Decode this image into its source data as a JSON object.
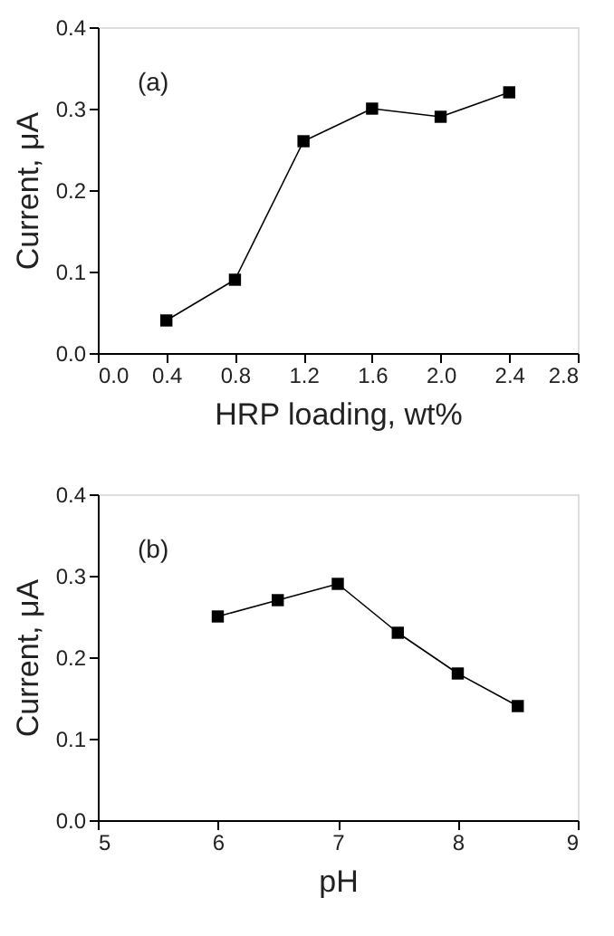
{
  "chart_data": [
    {
      "type": "line",
      "xlabel": "HRP loading, wt%",
      "ylabel": "Current, μA",
      "annotations": [
        "(a)"
      ],
      "marker": "square",
      "line_style": "solid",
      "grid": false,
      "x": [
        0.4,
        0.8,
        1.2,
        1.6,
        2.0,
        2.4
      ],
      "series": [
        {
          "color": "#000000",
          "values": [
            0.04,
            0.09,
            0.26,
            0.3,
            0.29,
            0.32
          ]
        }
      ],
      "xlim": [
        0,
        2.8
      ],
      "xticks": [
        {
          "value": 0,
          "label": "0.0"
        },
        0.4,
        0.8,
        1.2,
        1.6,
        {
          "value": 2,
          "label": "2.0"
        },
        2.4,
        2.8
      ],
      "ylim": [
        0,
        0.4
      ],
      "yticks": [
        {
          "value": 0,
          "label": "0.0"
        },
        0.1,
        0.2,
        0.3,
        0.4
      ]
    },
    {
      "type": "line",
      "xlabel": "pH",
      "ylabel": "Current, μA",
      "annotations": [
        "(b)"
      ],
      "marker": "square",
      "line_style": "solid",
      "grid": false,
      "x": [
        6,
        6.5,
        7,
        7.5,
        8,
        8.5
      ],
      "series": [
        {
          "color": "#000000",
          "values": [
            0.25,
            0.27,
            0.29,
            0.23,
            0.18,
            0.14
          ]
        }
      ],
      "xlim": [
        5,
        9
      ],
      "xticks": [
        5,
        6,
        7,
        8,
        9
      ],
      "ylim": [
        0,
        0.4
      ],
      "yticks": [
        {
          "value": 0,
          "label": "0.0"
        },
        0.1,
        0.2,
        0.3,
        0.4
      ]
    }
  ]
}
